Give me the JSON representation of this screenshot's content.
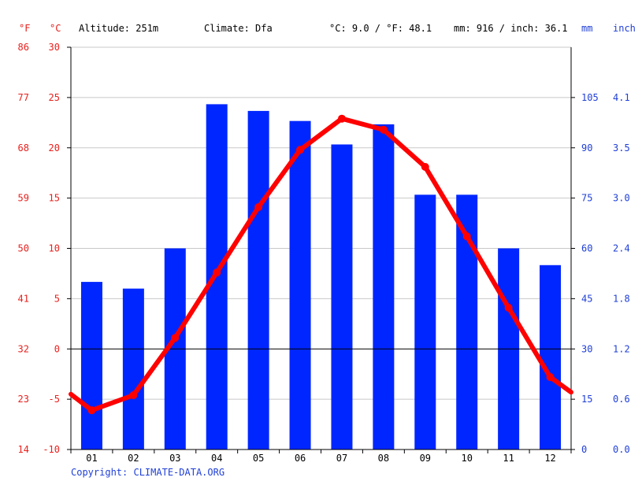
{
  "header": {
    "fahrenheit_unit": "°F",
    "celsius_unit": "°C",
    "altitude": "Altitude: 251m",
    "climate": "Climate: Dfa",
    "temperature_summary": "°C: 9.0 / °F: 48.1",
    "precipitation_summary": "mm: 916 / inch: 36.1",
    "mm_unit": "mm",
    "inch_unit": "inch"
  },
  "copyright": "Copyright: CLIMATE-DATA.ORG",
  "colors": {
    "bar": "#0026ff",
    "line": "#ff0000",
    "axis_red": "#e8201c",
    "axis_blue": "#1f3fd6",
    "grid": "#c8c8c8"
  },
  "chart_data": {
    "type": "bar",
    "categories": [
      "01",
      "02",
      "03",
      "04",
      "05",
      "06",
      "07",
      "08",
      "09",
      "10",
      "11",
      "12"
    ],
    "series": [
      {
        "type": "bar",
        "axis": "right",
        "unit": "mm",
        "values": [
          50,
          48,
          60,
          103,
          101,
          98,
          91,
          97,
          76,
          76,
          60,
          55
        ]
      },
      {
        "type": "line",
        "axis": "left",
        "unit": "°C",
        "values": [
          -6.1,
          -4.6,
          1.1,
          7.6,
          14.1,
          19.8,
          22.9,
          21.8,
          18.1,
          11.2,
          4.1,
          -2.8
        ],
        "edge_start": -4.5,
        "edge_end": -4.3
      }
    ],
    "y_left": {
      "unit": "°C",
      "range": [
        -10,
        30
      ],
      "ticks": [
        "30",
        "25",
        "20",
        "15",
        "10",
        "5",
        "0",
        "-5",
        "-10"
      ],
      "tick_values": [
        30,
        25,
        20,
        15,
        10,
        5,
        0,
        -5,
        -10
      ]
    },
    "y_far_left": {
      "unit": "°F",
      "ticks": [
        "86",
        "77",
        "68",
        "59",
        "50",
        "41",
        "32",
        "23",
        "14"
      ]
    },
    "y_right": {
      "unit": "mm",
      "range": [
        0,
        120
      ],
      "ticks": [
        "105",
        "90",
        "75",
        "60",
        "45",
        "30",
        "15",
        "0"
      ],
      "tick_values": [
        105,
        90,
        75,
        60,
        45,
        30,
        15,
        0
      ]
    },
    "y_far_right": {
      "unit": "inch",
      "ticks": [
        "4.1",
        "3.5",
        "3.0",
        "2.4",
        "1.8",
        "1.2",
        "0.6",
        "0.0"
      ]
    },
    "grid": true,
    "zero_line": 0
  }
}
